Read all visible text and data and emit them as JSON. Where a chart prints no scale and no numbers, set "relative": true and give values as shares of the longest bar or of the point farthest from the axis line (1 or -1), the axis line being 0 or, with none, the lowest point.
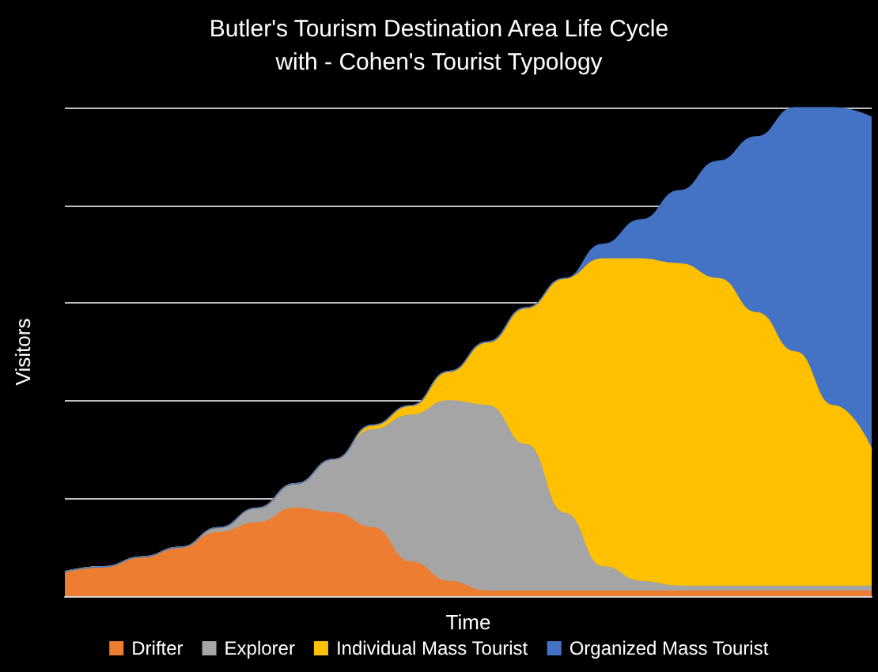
{
  "chart_data": {
    "type": "area",
    "title": "Butler's Tourism Destination Area Life Cycle",
    "subtitle": "with - Cohen's Tourist Typology",
    "xlabel": "Time",
    "ylabel": "Visitors",
    "relative": true,
    "stacked": true,
    "grid": "y",
    "legend": "bottom",
    "marker": "none",
    "categories": [
      null,
      null,
      null,
      null,
      null,
      null,
      null,
      null,
      null,
      null,
      null,
      null,
      null,
      null,
      null,
      null,
      null,
      null,
      null,
      null,
      null,
      null
    ],
    "series": [
      {
        "name": "Drifter",
        "color": "#ed7d31",
        "values": [
          0.05,
          0.06,
          0.08,
          0.1,
          0.13,
          0.15,
          0.18,
          0.17,
          0.14,
          0.07,
          0.03,
          0.01,
          0.01,
          0.01,
          0.01,
          0.01,
          0.01,
          0.01,
          0.01,
          0.01,
          0.01,
          0.01
        ]
      },
      {
        "name": "Explorer",
        "color": "#a5a5a5",
        "values": [
          0,
          0,
          0,
          0,
          0.01,
          0.03,
          0.05,
          0.11,
          0.2,
          0.3,
          0.37,
          0.38,
          0.3,
          0.16,
          0.05,
          0.02,
          0.01,
          0.01,
          0.01,
          0.01,
          0.01,
          0.01
        ]
      },
      {
        "name": "Individual Mass Tourist",
        "color": "#ffc000",
        "values": [
          0,
          0,
          0,
          0,
          0,
          0,
          0,
          0,
          0.01,
          0.02,
          0.06,
          0.13,
          0.28,
          0.48,
          0.63,
          0.66,
          0.66,
          0.63,
          0.56,
          0.48,
          0.37,
          0.28
        ]
      },
      {
        "name": "Organized Mass Tourist",
        "color": "#4472c4",
        "values": [
          0,
          0,
          0,
          0,
          0,
          0,
          0,
          0,
          0,
          0,
          0,
          0,
          0,
          0,
          0.03,
          0.08,
          0.15,
          0.24,
          0.36,
          0.5,
          0.61,
          0.68
        ]
      }
    ]
  }
}
